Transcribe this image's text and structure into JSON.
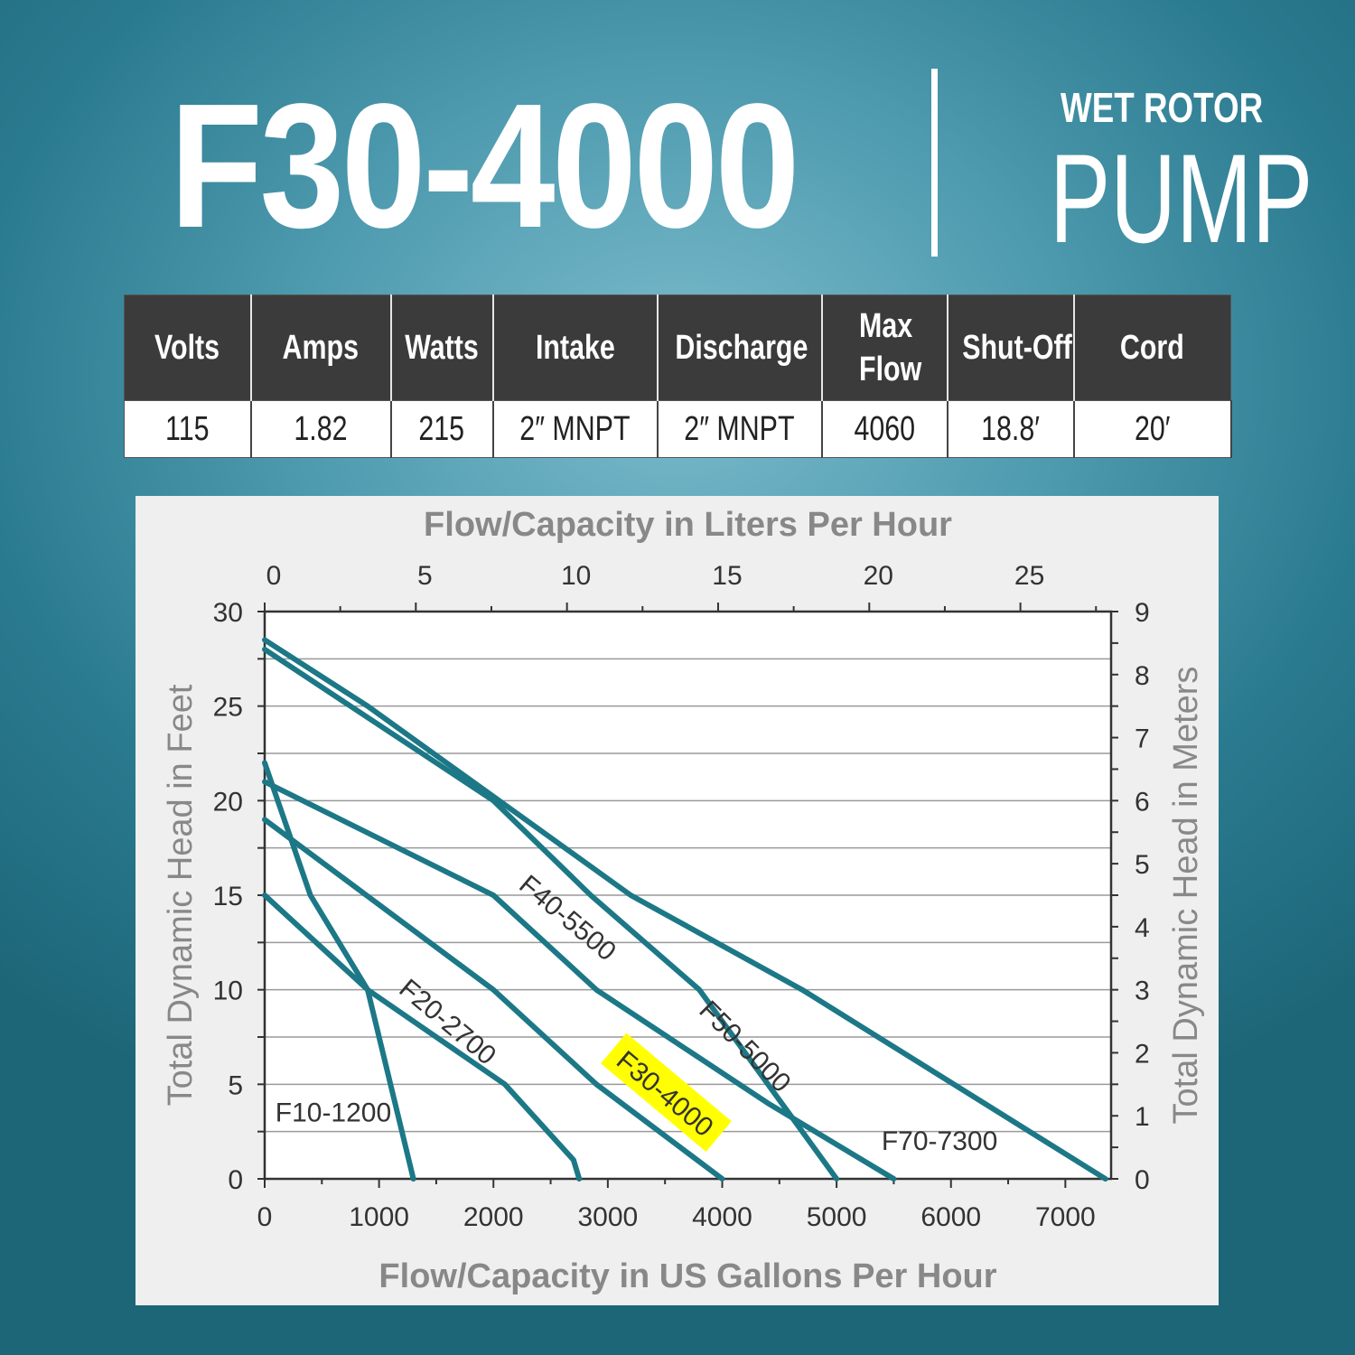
{
  "header": {
    "model": "F30-4000",
    "pump_type_top": "WET ROTOR",
    "pump_type_main": "PUMP"
  },
  "specs": {
    "headers": [
      "Volts",
      "Amps",
      "Watts",
      "Intake",
      "Discharge",
      "Max Flow",
      "Shut-Off",
      "Cord"
    ],
    "values": [
      "115",
      "1.82",
      "215",
      "2″ MNPT",
      "2″ MNPT",
      "4060",
      "18.8′",
      "20′"
    ]
  },
  "chart_data": {
    "type": "line",
    "title": "",
    "xlabel": "Flow/Capacity in US Gallons Per Hour",
    "ylabel": "Total Dynamic Head in Feet",
    "x2label": "Flow/Capacity in Liters Per Hour",
    "y2label": "Total Dynamic Head in Meters",
    "xlim": [
      0,
      7400
    ],
    "ylim": [
      0,
      30
    ],
    "x2lim": [
      0,
      28
    ],
    "y2lim": [
      0,
      9
    ],
    "xticks": [
      0,
      1000,
      2000,
      3000,
      4000,
      5000,
      6000,
      7000
    ],
    "yticks": [
      0,
      5,
      10,
      15,
      20,
      25,
      30
    ],
    "x2ticks": [
      0,
      5,
      10,
      15,
      20,
      25
    ],
    "y2ticks": [
      0,
      1,
      2,
      3,
      4,
      5,
      6,
      7,
      8,
      9
    ],
    "grid": true,
    "highlight": "F30-4000",
    "highlight_color": "#ffff00",
    "line_color": "#1c7886",
    "series": [
      {
        "name": "F10-1200",
        "points": [
          [
            0,
            22
          ],
          [
            400,
            15
          ],
          [
            900,
            10
          ],
          [
            1300,
            0
          ]
        ],
        "label_xy": [
          600,
          3.5
        ],
        "label_angle": 0
      },
      {
        "name": "F20-2700",
        "points": [
          [
            0,
            15
          ],
          [
            900,
            10
          ],
          [
            2100,
            5
          ],
          [
            2700,
            1
          ],
          [
            2750,
            0
          ]
        ],
        "label_xy": [
          1600,
          8.3
        ],
        "label_angle": 40
      },
      {
        "name": "F30-4000",
        "points": [
          [
            0,
            19
          ],
          [
            2000,
            10
          ],
          [
            2900,
            5
          ],
          [
            4000,
            0
          ]
        ],
        "label_xy": [
          3500,
          4.5
        ],
        "label_angle": 40
      },
      {
        "name": "F40-5500",
        "points": [
          [
            0,
            21
          ],
          [
            2000,
            15
          ],
          [
            2900,
            10
          ],
          [
            4400,
            4
          ],
          [
            5500,
            0
          ]
        ],
        "label_xy": [
          2650,
          13.8
        ],
        "label_angle": 40
      },
      {
        "name": "F50-5000",
        "points": [
          [
            0,
            28
          ],
          [
            2000,
            20
          ],
          [
            2850,
            15
          ],
          [
            3800,
            10
          ],
          [
            5000,
            0
          ]
        ],
        "label_xy": [
          4200,
          7
        ],
        "label_angle": 45
      },
      {
        "name": "F70-7300",
        "points": [
          [
            0,
            28.5
          ],
          [
            900,
            25
          ],
          [
            3200,
            15
          ],
          [
            4700,
            10
          ],
          [
            7350,
            0
          ]
        ],
        "label_xy": [
          5900,
          2
        ],
        "label_angle": 0
      }
    ]
  }
}
